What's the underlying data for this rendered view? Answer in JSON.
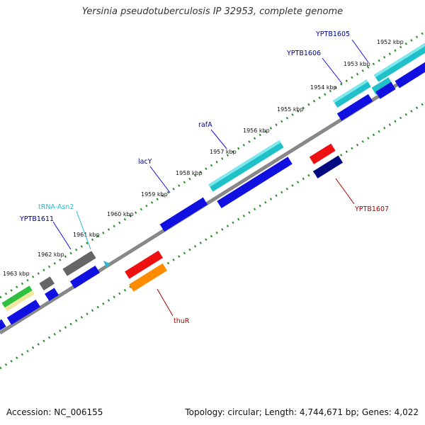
{
  "title": "Yersinia pseudotuberculosis IP 32953, complete genome",
  "footer": {
    "accession": "Accession: NC_006155",
    "summary": "Topology: circular; Length: 4,744,671 bp; Genes: 4,022"
  },
  "colors": {
    "backbone": "#888888",
    "tick": "#2a8a2a",
    "gene_blue": "#1010e0",
    "gene_cyan": "#20c0c8",
    "gene_grey": "#666666",
    "gene_red": "#ee1010",
    "gene_orange": "#ff8c00",
    "gene_navy": "#000a80",
    "label_blue": "#00008b",
    "label_cyan": "#30b8d0",
    "label_red": "#b00000"
  },
  "kbp_labels": [
    "1952 kbp",
    "1953 kbp",
    "1954 kbp",
    "1955 kbp",
    "1956 kbp",
    "1957 kbp",
    "1958 kbp",
    "1959 kbp",
    "1960 kbp",
    "1961 kbp",
    "1962 kbp",
    "1963 kbp"
  ],
  "gene_labels": {
    "ypt1605": "YPTB1605",
    "ypt1606": "YPTB1606",
    "rafa": "rafA",
    "lacy": "lacY",
    "trna": "tRNA-Asn2",
    "ypt1611": "YPTB1611",
    "ypt1607": "YPTB1607",
    "thur": "thuR"
  }
}
